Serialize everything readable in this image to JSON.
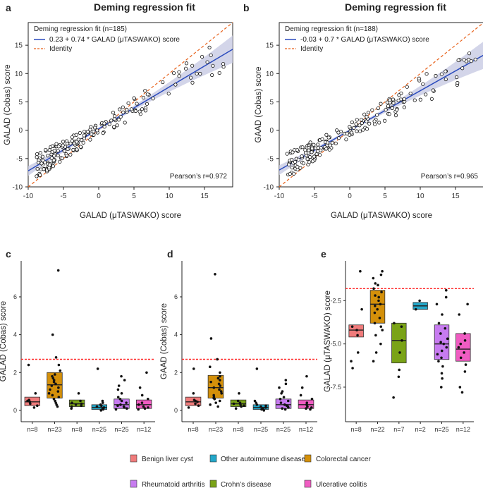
{
  "panel_labels": [
    "a",
    "b",
    "c",
    "d",
    "e"
  ],
  "colors": {
    "benign": "#f07b7b",
    "autoimmune": "#22a7c9",
    "colorectal": "#d4900a",
    "rheumatoid": "#c77bf0",
    "crohns": "#7aa317",
    "ulcerative": "#f05cc2",
    "fit_line": "#2b4bbd",
    "identity_line": "#e8611a",
    "cutoff_line": "#ff2a2a",
    "ci_band": "#c8cae3"
  },
  "chart_data": [
    {
      "id": "a",
      "type": "scatter",
      "title": "Deming regression fit",
      "xlabel": "GALAD (μTASWAKO) score",
      "ylabel": "GALAD (Cobas) score",
      "xlim": [
        -10,
        19
      ],
      "ylim": [
        -10,
        19
      ],
      "xticks": [
        "-10",
        "-5",
        "0",
        "5",
        "10",
        "15"
      ],
      "yticks": [
        "-10",
        "-5",
        "0",
        "5",
        "10",
        "15"
      ],
      "legend": {
        "title": "Deming regression fit (n=185)",
        "fit_label": "0.23 + 0.74 * GALAD (μTASWAKO) score",
        "identity_label": "Identity"
      },
      "intercept": 0.23,
      "slope": 0.74,
      "annotation": "Pearson’s r=0.972",
      "n_points": 185
    },
    {
      "id": "b",
      "type": "scatter",
      "title": "Deming regression fit",
      "xlabel": "GALAD (μTASWAKO) score",
      "ylabel": "GAAD (Cobas) score",
      "xlim": [
        -10,
        19
      ],
      "ylim": [
        -10,
        19
      ],
      "xticks": [
        "-10",
        "-5",
        "0",
        "5",
        "10",
        "15"
      ],
      "yticks": [
        "-10",
        "-5",
        "0",
        "5",
        "10",
        "15"
      ],
      "legend": {
        "title": "Deming regression fit (n=188)",
        "fit_label": "-0.03 + 0.7 * GALAD (μTASWAKO) score",
        "identity_label": "Identity"
      },
      "intercept": -0.03,
      "slope": 0.7,
      "annotation": "Pearson’s r=0.965",
      "n_points": 188
    },
    {
      "id": "c",
      "type": "box",
      "ylabel": "GALAD (Cobas) score",
      "ylim": [
        -0.6,
        7.9
      ],
      "yticks": [
        0,
        2,
        4,
        6
      ],
      "cutoff": 2.7,
      "groups": [
        {
          "key": "benign",
          "n": "n=8",
          "q1": 0.25,
          "median": 0.45,
          "q3": 0.7,
          "points": [
            0.15,
            0.25,
            0.45,
            0.5,
            0.55,
            0.9,
            2.4,
            0.35
          ]
        },
        {
          "key": "colorectal",
          "n": "n=23",
          "q1": 0.65,
          "median": 1.35,
          "q3": 2.0,
          "points": [
            7.4,
            4.0,
            2.8,
            2.4,
            2.1,
            1.9,
            1.8,
            1.6,
            1.5,
            1.4,
            1.3,
            1.2,
            1.1,
            1.0,
            0.9,
            0.8,
            0.6,
            0.5,
            0.4,
            0.3,
            0.2,
            1.7,
            0.7
          ]
        },
        {
          "key": "crohns",
          "n": "n=8",
          "q1": 0.2,
          "median": 0.35,
          "q3": 0.55,
          "points": [
            0.1,
            0.2,
            0.3,
            0.35,
            0.4,
            0.5,
            0.9,
            0.25
          ]
        },
        {
          "key": "autoimmune",
          "n": "n=25",
          "q1": 0.05,
          "median": 0.15,
          "q3": 0.3,
          "points": [
            2.2,
            0.5,
            0.4,
            0.3,
            0.25,
            0.2,
            0.15,
            0.1,
            0.05,
            0.0
          ]
        },
        {
          "key": "rheumatoid",
          "n": "n=25",
          "q1": 0.1,
          "median": 0.3,
          "q3": 0.6,
          "points": [
            1.8,
            1.6,
            1.3,
            1.1,
            0.9,
            0.7,
            0.6,
            0.5,
            0.4,
            0.3,
            0.25,
            0.2,
            0.15,
            0.1,
            0.05
          ]
        },
        {
          "key": "ulcerative",
          "n": "n=12",
          "q1": 0.1,
          "median": 0.3,
          "q3": 0.55,
          "points": [
            2.0,
            1.2,
            0.8,
            0.6,
            0.4,
            0.3,
            0.2,
            0.15,
            0.1,
            0.05
          ]
        }
      ]
    },
    {
      "id": "d",
      "type": "box",
      "ylabel": "GAAD (Cobas) score",
      "ylim": [
        -0.6,
        7.9
      ],
      "yticks": [
        0,
        2,
        4,
        6
      ],
      "cutoff": 2.7,
      "groups": [
        {
          "key": "benign",
          "n": "n=8",
          "q1": 0.25,
          "median": 0.45,
          "q3": 0.7,
          "points": [
            0.15,
            0.25,
            0.45,
            0.5,
            0.55,
            0.9,
            2.2,
            0.35
          ]
        },
        {
          "key": "colorectal",
          "n": "n=23",
          "q1": 0.65,
          "median": 1.2,
          "q3": 1.85,
          "points": [
            7.2,
            3.8,
            2.7,
            2.3,
            2.0,
            1.8,
            1.7,
            1.5,
            1.4,
            1.3,
            1.2,
            1.1,
            1.0,
            0.9,
            0.8,
            0.7,
            0.6,
            0.5,
            0.4,
            0.3,
            0.2,
            1.6,
            0.65
          ]
        },
        {
          "key": "crohns",
          "n": "n=8",
          "q1": 0.2,
          "median": 0.35,
          "q3": 0.55,
          "points": [
            0.1,
            0.2,
            0.3,
            0.35,
            0.4,
            0.5,
            0.9,
            0.25
          ]
        },
        {
          "key": "autoimmune",
          "n": "n=25",
          "q1": 0.05,
          "median": 0.15,
          "q3": 0.3,
          "points": [
            2.2,
            0.5,
            0.4,
            0.3,
            0.25,
            0.2,
            0.15,
            0.1,
            0.05,
            0.0
          ]
        },
        {
          "key": "rheumatoid",
          "n": "n=25",
          "q1": 0.1,
          "median": 0.3,
          "q3": 0.6,
          "points": [
            1.6,
            1.4,
            1.2,
            1.0,
            0.9,
            0.7,
            0.6,
            0.5,
            0.4,
            0.3,
            0.25,
            0.2,
            0.15,
            0.1,
            0.05
          ]
        },
        {
          "key": "ulcerative",
          "n": "n=12",
          "q1": 0.1,
          "median": 0.3,
          "q3": 0.55,
          "points": [
            1.8,
            1.2,
            0.8,
            0.6,
            0.4,
            0.3,
            0.2,
            0.15,
            0.1,
            0.05
          ]
        }
      ]
    },
    {
      "id": "e",
      "type": "box",
      "ylabel": "GALAD (μTASWAKO) score",
      "ylim": [
        -9.5,
        -0.2
      ],
      "yticks": [
        -2.5,
        -5.0,
        -7.5
      ],
      "ytick_labels": [
        "-2.5",
        "-5.0",
        "-7.5"
      ],
      "cutoff": -1.8,
      "groups": [
        {
          "key": "benign",
          "n": "n=8",
          "q1": -4.6,
          "median": -4.2,
          "q3": -3.9,
          "points": [
            -0.8,
            -3.0,
            -4.0,
            -4.2,
            -4.5,
            -5.5,
            -6.0,
            -6.4
          ]
        },
        {
          "key": "colorectal",
          "n": "n=22",
          "q1": -3.8,
          "median": -2.7,
          "q3": -1.9,
          "points": [
            -0.8,
            -1.0,
            -1.2,
            -1.5,
            -1.8,
            -2.0,
            -2.2,
            -2.5,
            -2.7,
            -2.8,
            -3.0,
            -3.2,
            -3.5,
            -3.8,
            -4.0,
            -4.2,
            -4.5,
            -5.0,
            -5.5,
            -6.0,
            -2.3,
            -1.6
          ]
        },
        {
          "key": "crohns",
          "n": "n=7",
          "q1": -6.1,
          "median": -4.8,
          "q3": -3.8,
          "points": [
            -3.8,
            -4.0,
            -4.8,
            -5.5,
            -6.5,
            -6.9,
            -8.1
          ]
        },
        {
          "key": "autoimmune",
          "n": "n=2",
          "q1": -3.0,
          "median": -2.8,
          "q3": -2.6,
          "points": [
            -2.5,
            -3.0
          ]
        },
        {
          "key": "rheumatoid",
          "n": "n=25",
          "q1": -5.9,
          "median": -5.0,
          "q3": -3.9,
          "points": [
            -1.9,
            -2.3,
            -2.7,
            -3.3,
            -3.8,
            -4.1,
            -4.4,
            -4.7,
            -5.0,
            -5.2,
            -5.4,
            -5.6,
            -5.8,
            -6.0,
            -6.3,
            -6.7,
            -7.0,
            -7.5,
            -4.9
          ]
        },
        {
          "key": "ulcerative",
          "n": "n=12",
          "q1": -6.0,
          "median": -5.3,
          "q3": -4.4,
          "points": [
            -2.7,
            -3.3,
            -4.4,
            -4.8,
            -5.2,
            -5.5,
            -5.8,
            -6.2,
            -6.6,
            -7.5,
            -7.8,
            -5.0
          ]
        }
      ]
    }
  ],
  "legend": {
    "items": [
      {
        "key": "benign",
        "label": "Benign liver cyst"
      },
      {
        "key": "autoimmune",
        "label": "Other autoimmune diseases"
      },
      {
        "key": "colorectal",
        "label": "Colorectal cancer"
      },
      {
        "key": "rheumatoid",
        "label": "Rheumatoid arthritis"
      },
      {
        "key": "crohns",
        "label": "Crohn’s disease"
      },
      {
        "key": "ulcerative",
        "label": "Ulcerative colitis"
      }
    ]
  }
}
